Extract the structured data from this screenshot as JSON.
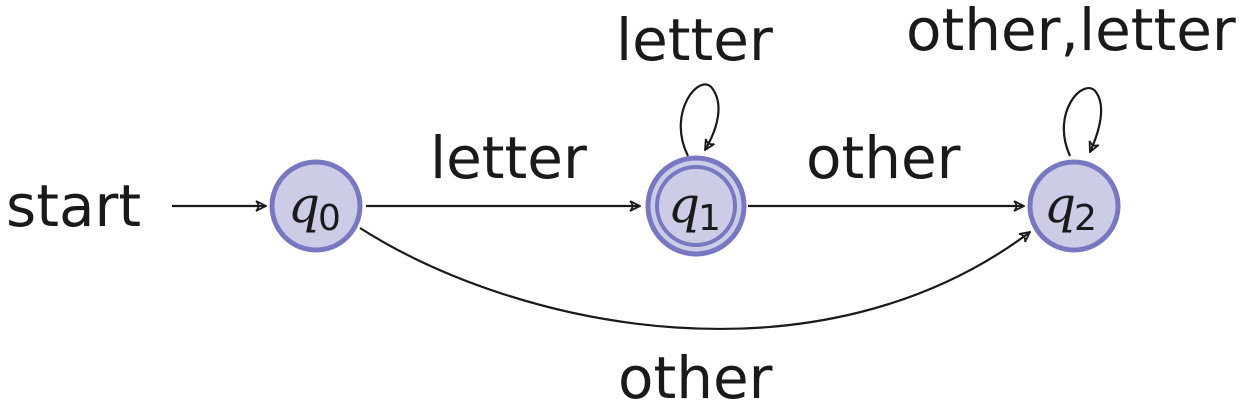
{
  "diagram": {
    "start_label": "start",
    "states": [
      {
        "name": "q",
        "subscript": "0",
        "accepting": false
      },
      {
        "name": "q",
        "subscript": "1",
        "accepting": true
      },
      {
        "name": "q",
        "subscript": "2",
        "accepting": false
      }
    ],
    "transitions": [
      {
        "from": "q0",
        "to": "q1",
        "label": "letter"
      },
      {
        "from": "q1",
        "to": "q1",
        "label": "letter"
      },
      {
        "from": "q1",
        "to": "q2",
        "label": "other"
      },
      {
        "from": "q2",
        "to": "q2",
        "label": "other,letter"
      },
      {
        "from": "q0",
        "to": "q2",
        "label": "other"
      }
    ],
    "colors": {
      "state_fill": "#cccce6",
      "state_stroke": "#7777c2",
      "edge": "#1a1a1a"
    }
  }
}
